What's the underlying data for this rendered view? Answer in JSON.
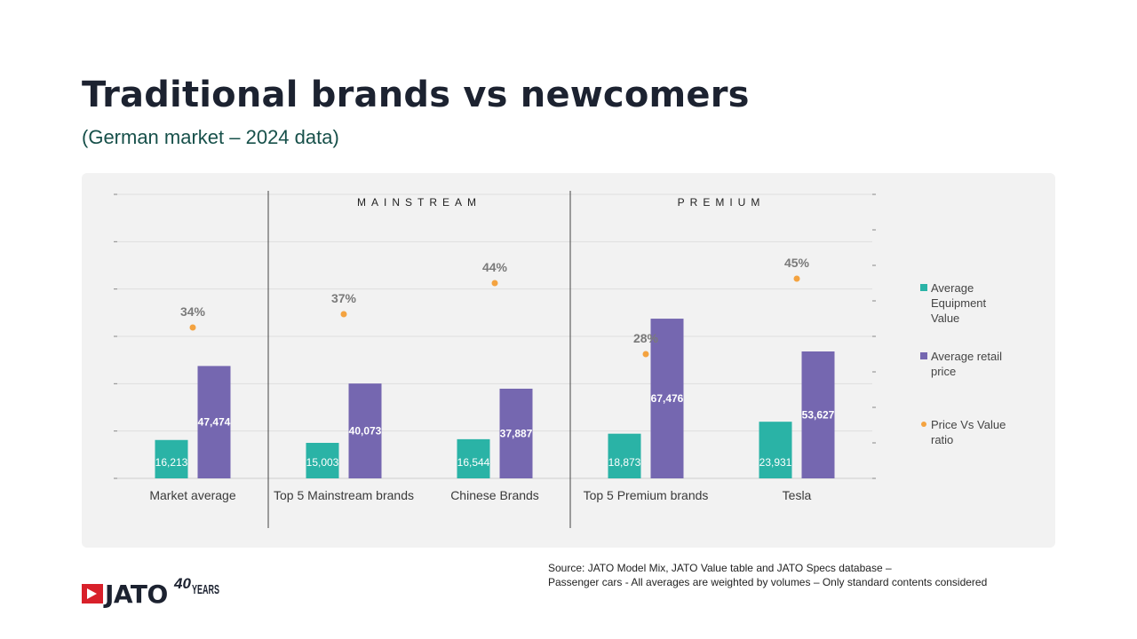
{
  "header": {
    "title": "Traditional brands vs newcomers",
    "subtitle": "(German market – 2024 data)"
  },
  "chart_data": {
    "type": "bar",
    "groups": [
      {
        "label": "MAINSTREAM",
        "categories": [
          "Top 5 Mainstream brands",
          "Chinese Brands"
        ]
      },
      {
        "label": "PREMIUM",
        "categories": [
          "Top 5 Premium brands",
          "Tesla"
        ]
      }
    ],
    "categories": [
      "Market average",
      "Top 5 Mainstream brands",
      "Chinese Brands",
      "Top 5 Premium brands",
      "Tesla"
    ],
    "series": [
      {
        "name": "Average Equipment Value",
        "type": "bar",
        "color": "#2ab3a6",
        "values": [
          16213,
          15003,
          16544,
          18873,
          23931
        ],
        "labels": [
          "16,213",
          "15,003",
          "16,544",
          "18,873",
          "23,931"
        ]
      },
      {
        "name": "Average retail price",
        "type": "bar",
        "color": "#7567b0",
        "values": [
          47474,
          40073,
          37887,
          67476,
          53627
        ],
        "labels": [
          "47,474",
          "40,073",
          "37,887",
          "67,476",
          "53,627"
        ]
      },
      {
        "name": "Price Vs Value ratio",
        "type": "scatter",
        "axis": "secondary",
        "color": "#f4a340",
        "values": [
          34,
          37,
          44,
          28,
          45
        ],
        "labels": [
          "34%",
          "37%",
          "44%",
          "28%",
          "45%"
        ]
      }
    ],
    "ylim": [
      0,
      120000
    ],
    "y2lim": [
      0,
      64
    ],
    "legend_position": "right",
    "grid": true
  },
  "footer": {
    "source_line1": "Source: JATO Model Mix, JATO Value table and JATO Specs database –",
    "source_line2": "Passenger cars - All averages are weighted by volumes – Only standard contents considered",
    "logo_text": "JATO",
    "logo_40": "40",
    "logo_years": "YEARS"
  }
}
